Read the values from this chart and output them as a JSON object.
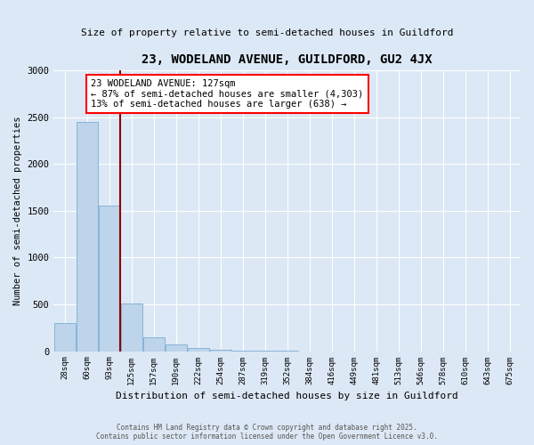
{
  "title": "23, WODELAND AVENUE, GUILDFORD, GU2 4JX",
  "subtitle": "Size of property relative to semi-detached houses in Guildford",
  "xlabel": "Distribution of semi-detached houses by size in Guildford",
  "ylabel": "Number of semi-detached properties",
  "categories": [
    "28sqm",
    "60sqm",
    "93sqm",
    "125sqm",
    "157sqm",
    "190sqm",
    "222sqm",
    "254sqm",
    "287sqm",
    "319sqm",
    "352sqm",
    "384sqm",
    "416sqm",
    "449sqm",
    "481sqm",
    "513sqm",
    "546sqm",
    "578sqm",
    "610sqm",
    "643sqm",
    "675sqm"
  ],
  "values": [
    305,
    2450,
    1560,
    510,
    150,
    68,
    38,
    18,
    5,
    2,
    1,
    0,
    0,
    0,
    0,
    0,
    0,
    0,
    0,
    0,
    0
  ],
  "bar_color": "#bdd4ea",
  "bar_edgecolor": "#7baed4",
  "red_line_x": 2.5,
  "annotation_line1": "23 WODELAND AVENUE: 127sqm",
  "annotation_line2": "← 87% of semi-detached houses are smaller (4,303)",
  "annotation_line3": "13% of semi-detached houses are larger (638) →",
  "ylim": [
    0,
    3000
  ],
  "yticks": [
    0,
    500,
    1000,
    1500,
    2000,
    2500,
    3000
  ],
  "background_color": "#dce8f5",
  "grid_color": "#ffffff",
  "footer_line1": "Contains HM Land Registry data © Crown copyright and database right 2025.",
  "footer_line2": "Contains public sector information licensed under the Open Government Licence v3.0."
}
